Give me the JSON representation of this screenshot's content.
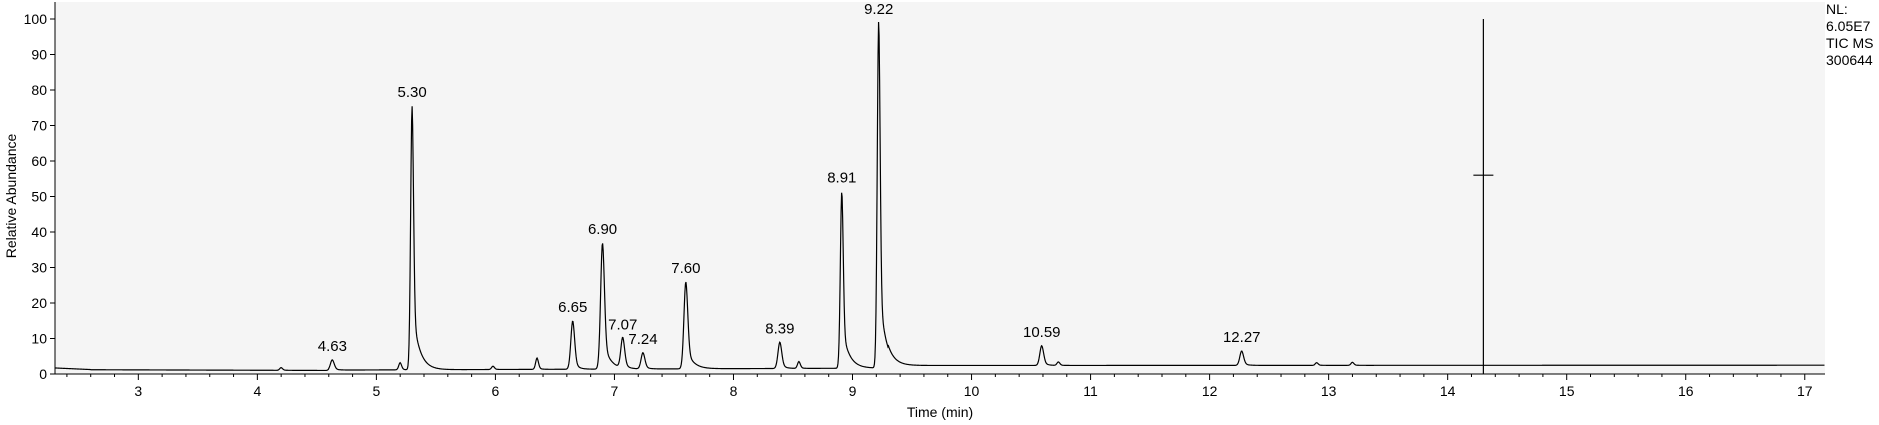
{
  "chart_data": {
    "type": "line",
    "title": "",
    "xlabel": "Time (min)",
    "ylabel": "Relative Abundance",
    "xlim": [
      2.3,
      17.17
    ],
    "ylim": [
      0,
      100
    ],
    "x_ticks": [
      3,
      4,
      5,
      6,
      7,
      8,
      9,
      10,
      11,
      12,
      13,
      14,
      15,
      16,
      17
    ],
    "y_ticks": [
      0,
      10,
      20,
      30,
      40,
      50,
      60,
      70,
      80,
      90,
      100
    ],
    "grid": false,
    "plot_background": "#f5f5f5",
    "line_color": "#000000",
    "peak_labels": [
      {
        "label": "4.63",
        "x": 4.63,
        "y": 4.5
      },
      {
        "label": "5.30",
        "x": 5.3,
        "y": 76
      },
      {
        "label": "6.65",
        "x": 6.65,
        "y": 15.5
      },
      {
        "label": "6.90",
        "x": 6.9,
        "y": 37.5
      },
      {
        "label": "7.07",
        "x": 7.07,
        "y": 10.5
      },
      {
        "label": "7.24",
        "x": 7.24,
        "y": 6.5
      },
      {
        "label": "7.60",
        "x": 7.6,
        "y": 26.5
      },
      {
        "label": "8.39",
        "x": 8.39,
        "y": 9.5
      },
      {
        "label": "8.91",
        "x": 8.91,
        "y": 52
      },
      {
        "label": "9.22",
        "x": 9.22,
        "y": 100
      },
      {
        "label": "10.59",
        "x": 10.59,
        "y": 8.5
      },
      {
        "label": "12.27",
        "x": 12.27,
        "y": 7
      }
    ],
    "minor_peaks": [
      {
        "x": 4.2,
        "y": 1.8
      },
      {
        "x": 5.2,
        "y": 3.2
      },
      {
        "x": 5.98,
        "y": 2.2
      },
      {
        "x": 6.35,
        "y": 4.5
      },
      {
        "x": 8.55,
        "y": 3.5
      },
      {
        "x": 10.73,
        "y": 3.4
      },
      {
        "x": 12.9,
        "y": 3.2
      },
      {
        "x": 13.2,
        "y": 3.3
      }
    ],
    "marker": {
      "x": 14.3,
      "y_top": 100,
      "crossbar_y": 56
    }
  },
  "info": {
    "nl_label": "NL:",
    "nl_value": "6.05E7",
    "scan": "TIC  MS",
    "sample": "300644"
  }
}
